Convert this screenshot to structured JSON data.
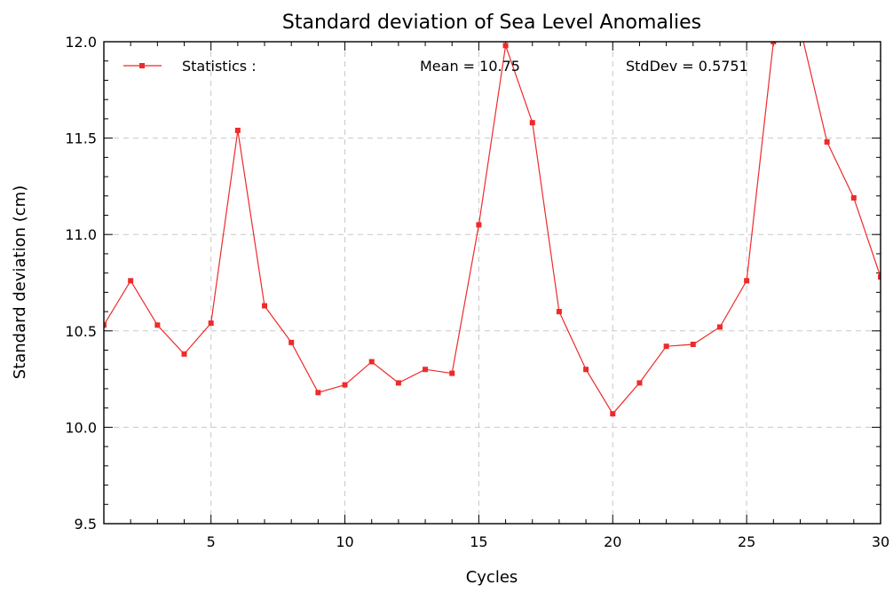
{
  "chart_data": {
    "type": "line",
    "title": "Standard deviation of Sea Level Anomalies",
    "xlabel": "Cycles",
    "ylabel": "Standard deviation (cm)",
    "xlim": [
      1,
      30
    ],
    "ylim": [
      9.5,
      12.0
    ],
    "x_ticks": [
      5,
      10,
      15,
      20,
      25,
      30
    ],
    "x_tick_labels": [
      "5",
      "10",
      "15",
      "20",
      "25",
      "30"
    ],
    "y_ticks": [
      9.5,
      10.0,
      10.5,
      11.0,
      11.5,
      12.0
    ],
    "y_tick_labels": [
      "9.5",
      "10.0",
      "10.5",
      "11.0",
      "11.5",
      "12.0"
    ],
    "grid": true,
    "legend_position": "top",
    "legend": {
      "entry": "Statistics :",
      "mean_text": "Mean = 10.75",
      "stddev_text": "StdDev = 0.5751"
    },
    "series": [
      {
        "name": "Statistics :",
        "color": "#ee2a2a",
        "marker": "square",
        "x": [
          1,
          2,
          3,
          4,
          5,
          6,
          7,
          8,
          9,
          10,
          11,
          12,
          13,
          14,
          15,
          16,
          17,
          18,
          19,
          20,
          21,
          22,
          23,
          24,
          25,
          26,
          27,
          28,
          29,
          30
        ],
        "values": [
          10.53,
          10.76,
          10.53,
          10.38,
          10.54,
          11.54,
          10.63,
          10.44,
          10.18,
          10.22,
          10.34,
          10.23,
          10.3,
          10.28,
          11.05,
          11.98,
          11.58,
          10.6,
          10.3,
          10.07,
          10.23,
          10.42,
          10.43,
          10.52,
          10.76,
          12.0,
          12.07,
          11.48,
          11.19,
          10.78
        ]
      }
    ]
  }
}
